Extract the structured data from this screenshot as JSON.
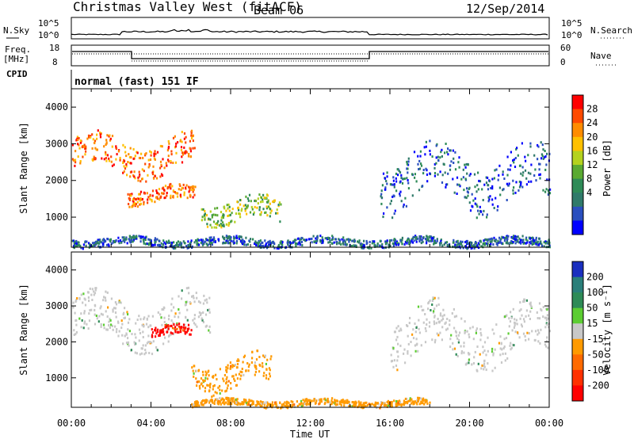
{
  "header": {
    "station": "Christmas Valley West (fitACF)",
    "beam": "Beam 06",
    "date": "12/Sep/2014"
  },
  "top_panels": {
    "nsky_label": "N.Sky",
    "nsky_ticks": [
      "10^5",
      "10^0"
    ],
    "nsearch_label": "N.Search",
    "nsearch_ticks": [
      "10^5",
      "10^0"
    ],
    "freq_label": "Freq.",
    "freq_unit": "[MHz]",
    "freq_ticks": [
      "18",
      "8"
    ],
    "nave_label": "Nave",
    "nave_ticks": [
      "60",
      "0"
    ],
    "cpid_label": "CPID",
    "cpid_text": "normal (fast) 151 IF"
  },
  "chart_data": [
    {
      "type": "heatmap",
      "name": "power",
      "ylabel": "Slant Range [km]",
      "xlabel": "",
      "x_ticks": [
        "00:00",
        "04:00",
        "08:00",
        "12:00",
        "16:00",
        "20:00",
        "00:00"
      ],
      "y_ticks": [
        "1000",
        "2000",
        "3000",
        "4000"
      ],
      "ylim": [
        180,
        4500
      ],
      "xlim_hours": [
        0,
        24
      ],
      "colorbar": {
        "label": "Power [dB]",
        "ticks": [
          "28",
          "24",
          "20",
          "16",
          "12",
          "8",
          "4"
        ],
        "colors": [
          "#ff0000",
          "#ff4a00",
          "#ff8c00",
          "#ffc000",
          "#b4d21e",
          "#5aaa32",
          "#2e8b57",
          "#2f7a6a",
          "#2a4fbf",
          "#0000ff"
        ]
      },
      "features": [
        {
          "hour_start": 0.0,
          "hour_end": 6.2,
          "range_km": [
            2100,
            3300
          ],
          "level": "high"
        },
        {
          "hour_start": 2.8,
          "hour_end": 6.2,
          "range_km": [
            1350,
            1900
          ],
          "level": "high"
        },
        {
          "hour_start": 6.5,
          "hour_end": 10.5,
          "range_km": [
            750,
            1600
          ],
          "level": "medium"
        },
        {
          "hour_start": 15.5,
          "hour_end": 24.0,
          "range_km": [
            1150,
            3000
          ],
          "level": "low"
        },
        {
          "hour_start": 0.0,
          "hour_end": 24.0,
          "range_km": [
            200,
            500
          ],
          "level": "low"
        }
      ]
    },
    {
      "type": "heatmap",
      "name": "velocity",
      "ylabel": "Slant Range [km]",
      "xlabel": "Time UT",
      "x_ticks": [
        "00:00",
        "04:00",
        "08:00",
        "12:00",
        "16:00",
        "20:00",
        "00:00"
      ],
      "y_ticks": [
        "1000",
        "2000",
        "3000",
        "4000"
      ],
      "ylim": [
        180,
        4500
      ],
      "xlim_hours": [
        0,
        24
      ],
      "colorbar": {
        "label": "Velocity [m s⁻¹]",
        "ticks": [
          "200",
          "100",
          "50",
          "15",
          "-15",
          "-50",
          "-100",
          "-200"
        ],
        "colors": [
          "#1a2fbf",
          "#2a7f7a",
          "#2e8b57",
          "#5ccd32",
          "#c8c8c8",
          "#ff9a00",
          "#ff6a00",
          "#ff3000",
          "#ff0000"
        ]
      },
      "features": [
        {
          "hour_start": 0.0,
          "hour_end": 7.0,
          "range_km": [
            1800,
            3400
          ],
          "velocity": "~0"
        },
        {
          "hour_start": 4.0,
          "hour_end": 6.0,
          "range_km": [
            2100,
            2500
          ],
          "velocity": "-200"
        },
        {
          "hour_start": 6.0,
          "hour_end": 10.0,
          "range_km": [
            600,
            1700
          ],
          "velocity": "-50"
        },
        {
          "hour_start": 16.0,
          "hour_end": 24.0,
          "range_km": [
            1300,
            3100
          ],
          "velocity": "~0"
        },
        {
          "hour_start": 6.0,
          "hour_end": 18.0,
          "range_km": [
            200,
            450
          ],
          "velocity": "-50"
        }
      ]
    }
  ]
}
